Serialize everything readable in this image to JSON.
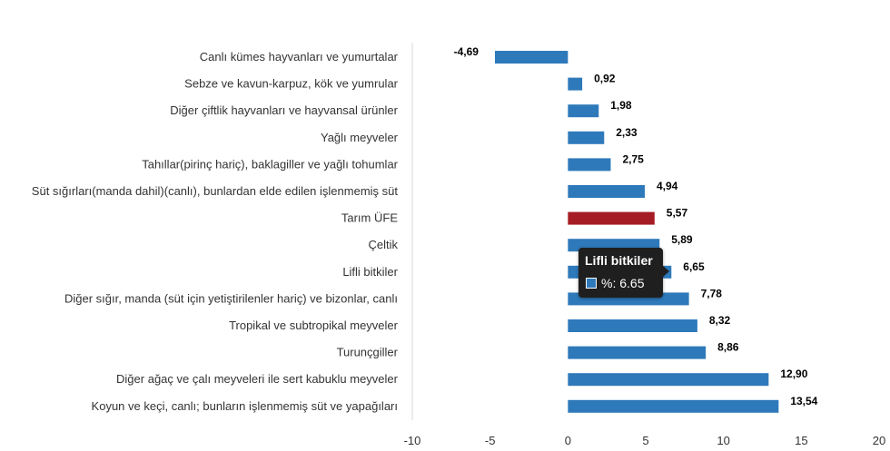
{
  "chart_data": {
    "type": "bar",
    "orientation": "horizontal",
    "title": "",
    "xlabel": "",
    "ylabel": "",
    "xlim": [
      -10,
      20
    ],
    "xticks": [
      "-10",
      "-5",
      "0",
      "5",
      "10",
      "15",
      "20"
    ],
    "grid": false,
    "legend": "none",
    "colors": {
      "default": "#2E79BA",
      "highlight": "#A51C24"
    },
    "categories": [
      "Canlı kümes hayvanları ve yumurtalar",
      "Sebze ve kavun-karpuz, kök ve yumrular",
      "Diğer çiftlik hayvanları ve hayvansal ürünler",
      "Yağlı meyveler",
      "Tahıllar(pirinç hariç), baklagiller ve yağlı tohumlar",
      "Süt sığırları(manda dahil)(canlı), bunlardan elde edilen işlenmemiş süt",
      "Tarım ÜFE",
      "Çeltik",
      "Lifli bitkiler",
      "Diğer sığır, manda (süt için yetiştirilenler hariç) ve bizonlar, canlı",
      "Tropikal ve subtropikal meyveler",
      "Turunçgiller",
      "Diğer ağaç ve çalı meyveleri ile sert kabuklu meyveler",
      "Koyun ve keçi, canlı; bunların işlenmemiş süt ve yapağıları"
    ],
    "values": [
      -4.69,
      0.92,
      1.98,
      2.33,
      2.75,
      4.94,
      5.57,
      5.89,
      6.65,
      7.78,
      8.32,
      8.86,
      12.9,
      13.54
    ],
    "value_labels": [
      "-4,69",
      "0,92",
      "1,98",
      "2,33",
      "2,75",
      "4,94",
      "5,57",
      "5,89",
      "6,65",
      "7,78",
      "8,32",
      "8,86",
      "12,90",
      "13,54"
    ],
    "highlight_index": 6
  },
  "tooltip": {
    "title": "Lifli bitkiler",
    "value_text": "%: 6.65"
  }
}
